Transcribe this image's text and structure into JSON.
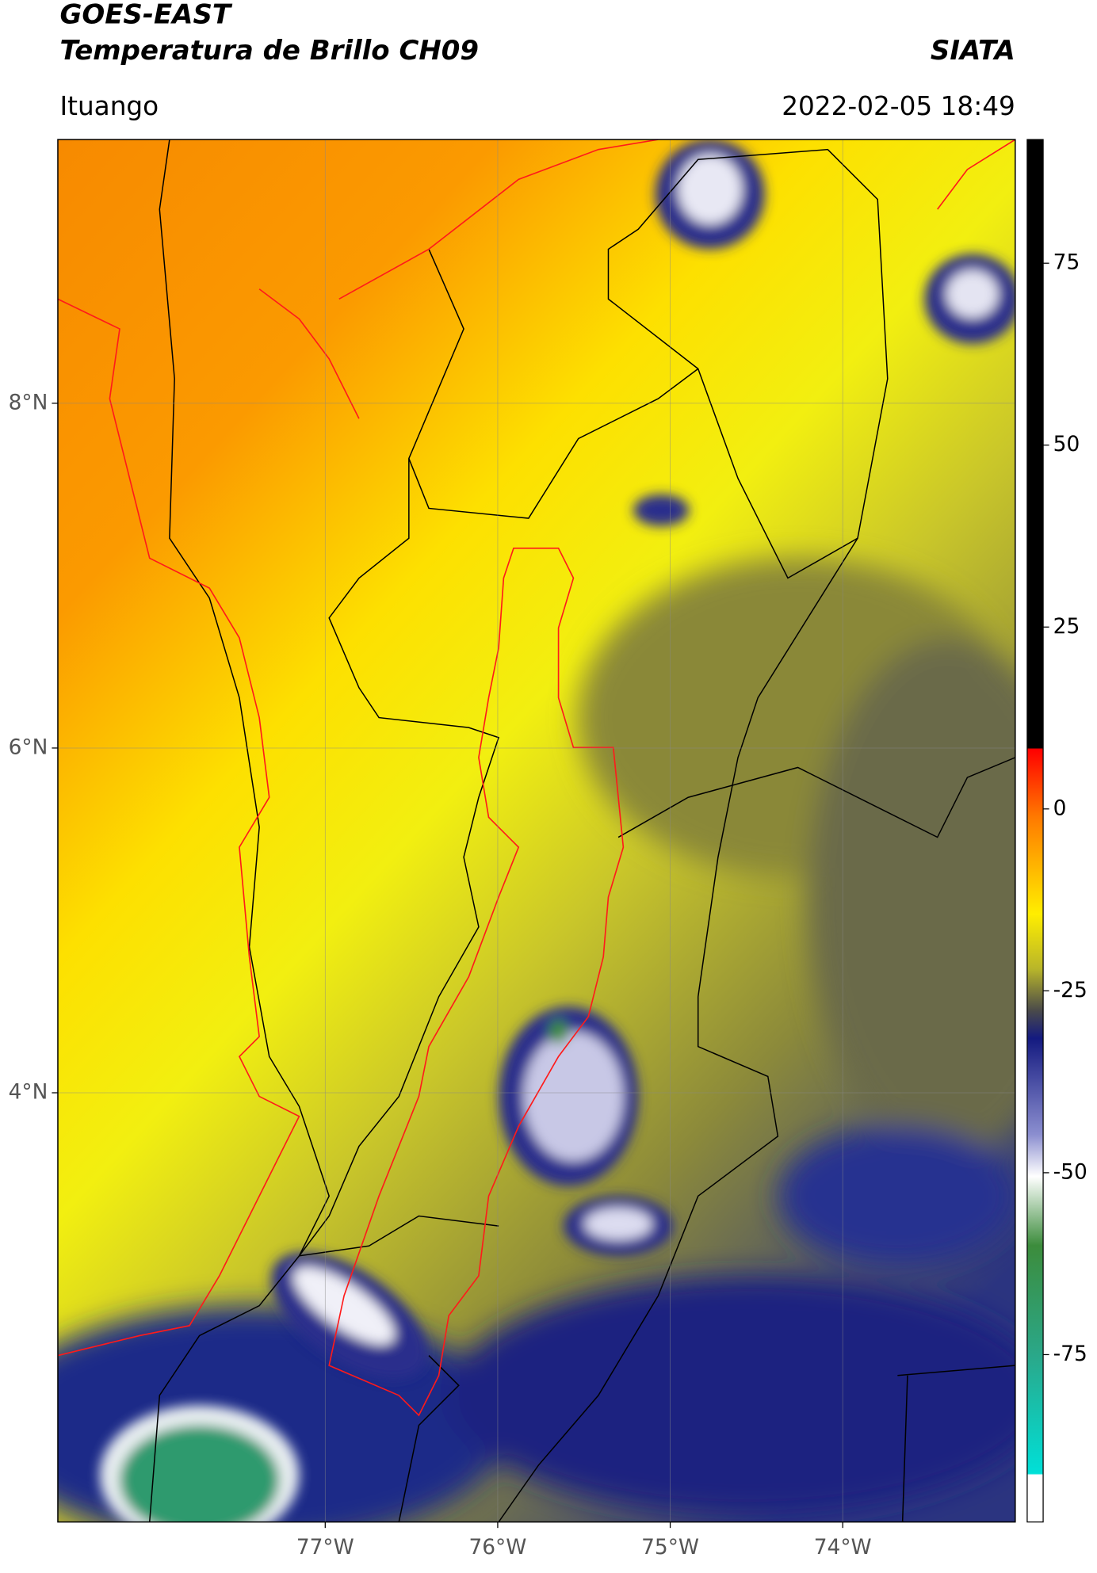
{
  "header": {
    "title": "GOES-EAST",
    "subtitle": "Temperatura de Brillo CH09",
    "source": "SIATA",
    "region": "Ituango",
    "datetime": "2022-02-05 18:49"
  },
  "map": {
    "xlim": [
      -78.55,
      -73.0
    ],
    "ylim": [
      1.51,
      9.53
    ],
    "xticks": [
      {
        "value": -77,
        "label": "77°W"
      },
      {
        "value": -76,
        "label": "76°W"
      },
      {
        "value": -75,
        "label": "75°W"
      },
      {
        "value": -74,
        "label": "74°W"
      }
    ],
    "yticks": [
      {
        "value": 8,
        "label": "8°N"
      },
      {
        "value": 6,
        "label": "6°N"
      },
      {
        "value": 4,
        "label": "4°N"
      }
    ],
    "grid": true
  },
  "colorbar": {
    "lim": [
      -98,
      92
    ],
    "ticks": [
      75,
      50,
      25,
      0,
      -25,
      -50,
      -75
    ]
  }
}
